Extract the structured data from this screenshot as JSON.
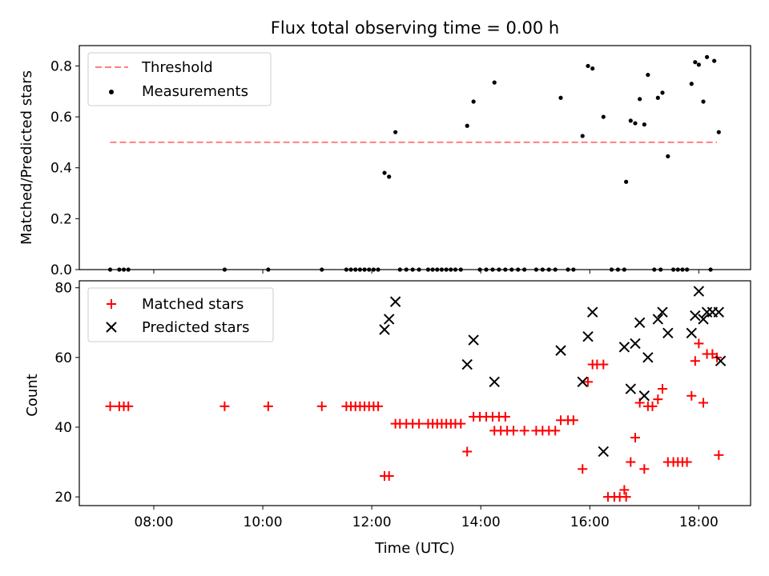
{
  "chart_data": [
    {
      "type": "scatter",
      "title": "Flux total observing time = 0.00 h",
      "xlabel": "",
      "ylabel": "Matched/Predicted stars",
      "xlim": [
        "06:38",
        "18:57"
      ],
      "ylim": [
        0,
        0.88
      ],
      "yticks": [
        "0.0",
        "0.2",
        "0.4",
        "0.6",
        "0.8"
      ],
      "legend_position": "top-left",
      "threshold": {
        "name": "Threshold",
        "value": 0.5,
        "x": [
          "07:12",
          "18:20"
        ],
        "color": "#ff7f7f",
        "style": "dashed"
      },
      "series": [
        {
          "name": "Measurements",
          "color": "#000000",
          "marker": "dot",
          "points": [
            [
              "07:12",
              0
            ],
            [
              "07:22",
              0
            ],
            [
              "07:27",
              0
            ],
            [
              "07:32",
              0
            ],
            [
              "09:18",
              0
            ],
            [
              "10:06",
              0
            ],
            [
              "11:05",
              0
            ],
            [
              "11:32",
              0
            ],
            [
              "11:37",
              0
            ],
            [
              "11:42",
              0
            ],
            [
              "11:47",
              0
            ],
            [
              "11:52",
              0
            ],
            [
              "11:57",
              0
            ],
            [
              "12:02",
              0
            ],
            [
              "12:07",
              0
            ],
            [
              "12:14",
              0.38
            ],
            [
              "12:19",
              0.365
            ],
            [
              "12:26",
              0.54
            ],
            [
              "12:31",
              0
            ],
            [
              "12:38",
              0
            ],
            [
              "12:45",
              0
            ],
            [
              "12:52",
              0
            ],
            [
              "13:02",
              0
            ],
            [
              "13:07",
              0
            ],
            [
              "13:12",
              0
            ],
            [
              "13:17",
              0
            ],
            [
              "13:22",
              0
            ],
            [
              "13:27",
              0
            ],
            [
              "13:32",
              0
            ],
            [
              "13:38",
              0
            ],
            [
              "13:45",
              0.565
            ],
            [
              "13:52",
              0.66
            ],
            [
              "13:59",
              0
            ],
            [
              "14:06",
              0
            ],
            [
              "14:13",
              0
            ],
            [
              "14:20",
              0
            ],
            [
              "14:27",
              0
            ],
            [
              "14:34",
              0
            ],
            [
              "14:41",
              0
            ],
            [
              "14:48",
              0
            ],
            [
              "14:15",
              0.735
            ],
            [
              "15:01",
              0
            ],
            [
              "15:08",
              0
            ],
            [
              "15:15",
              0
            ],
            [
              "15:22",
              0
            ],
            [
              "15:36",
              0
            ],
            [
              "15:42",
              0
            ],
            [
              "15:28",
              0.675
            ],
            [
              "15:52",
              0.525
            ],
            [
              "15:58",
              0.8
            ],
            [
              "16:03",
              0.79
            ],
            [
              "16:15",
              0.6
            ],
            [
              "16:24",
              0
            ],
            [
              "16:31",
              0
            ],
            [
              "16:38",
              0
            ],
            [
              "16:40",
              0.345
            ],
            [
              "16:45",
              0.585
            ],
            [
              "16:50",
              0.575
            ],
            [
              "16:55",
              0.67
            ],
            [
              "17:00",
              0.57
            ],
            [
              "17:04",
              0.765
            ],
            [
              "17:11",
              0
            ],
            [
              "17:18",
              0
            ],
            [
              "17:15",
              0.675
            ],
            [
              "17:20",
              0.695
            ],
            [
              "17:26",
              0.445
            ],
            [
              "17:32",
              0
            ],
            [
              "17:37",
              0
            ],
            [
              "17:42",
              0
            ],
            [
              "17:47",
              0
            ],
            [
              "17:52",
              0.73
            ],
            [
              "17:56",
              0.815
            ],
            [
              "18:00",
              0.805
            ],
            [
              "18:05",
              0.66
            ],
            [
              "18:09",
              0.835
            ],
            [
              "18:13",
              0
            ],
            [
              "18:17",
              0.82
            ],
            [
              "18:22",
              0.54
            ]
          ]
        }
      ]
    },
    {
      "type": "scatter",
      "title": "",
      "xlabel": "Time (UTC)",
      "ylabel": "Count",
      "xlim": [
        "06:38",
        "18:57"
      ],
      "ylim": [
        17.5,
        82
      ],
      "xticks": [
        "08:00",
        "10:00",
        "12:00",
        "14:00",
        "16:00",
        "18:00"
      ],
      "yticks": [
        "20",
        "40",
        "60",
        "80"
      ],
      "legend_position": "top-left",
      "series": [
        {
          "name": "Matched stars",
          "color": "#ff0000",
          "marker": "plus",
          "points": [
            [
              "07:12",
              46
            ],
            [
              "07:22",
              46
            ],
            [
              "07:27",
              46
            ],
            [
              "07:32",
              46
            ],
            [
              "09:18",
              46
            ],
            [
              "10:06",
              46
            ],
            [
              "11:05",
              46
            ],
            [
              "11:32",
              46
            ],
            [
              "11:37",
              46
            ],
            [
              "11:42",
              46
            ],
            [
              "11:47",
              46
            ],
            [
              "11:52",
              46
            ],
            [
              "11:57",
              46
            ],
            [
              "12:02",
              46
            ],
            [
              "12:07",
              46
            ],
            [
              "12:14",
              26
            ],
            [
              "12:19",
              26
            ],
            [
              "12:26",
              41
            ],
            [
              "12:31",
              41
            ],
            [
              "12:38",
              41
            ],
            [
              "12:45",
              41
            ],
            [
              "12:52",
              41
            ],
            [
              "13:02",
              41
            ],
            [
              "13:07",
              41
            ],
            [
              "13:12",
              41
            ],
            [
              "13:17",
              41
            ],
            [
              "13:22",
              41
            ],
            [
              "13:27",
              41
            ],
            [
              "13:32",
              41
            ],
            [
              "13:38",
              41
            ],
            [
              "13:45",
              33
            ],
            [
              "13:52",
              43
            ],
            [
              "13:59",
              43
            ],
            [
              "14:06",
              43
            ],
            [
              "14:13",
              43
            ],
            [
              "14:20",
              43
            ],
            [
              "14:27",
              43
            ],
            [
              "14:15",
              39
            ],
            [
              "14:22",
              39
            ],
            [
              "14:29",
              39
            ],
            [
              "14:36",
              39
            ],
            [
              "14:48",
              39
            ],
            [
              "15:01",
              39
            ],
            [
              "15:08",
              39
            ],
            [
              "15:15",
              39
            ],
            [
              "15:22",
              39
            ],
            [
              "15:28",
              42
            ],
            [
              "15:36",
              42
            ],
            [
              "15:42",
              42
            ],
            [
              "15:52",
              28
            ],
            [
              "15:58",
              53
            ],
            [
              "16:03",
              58
            ],
            [
              "16:08",
              58
            ],
            [
              "16:15",
              58
            ],
            [
              "16:20",
              20
            ],
            [
              "16:27",
              20
            ],
            [
              "16:33",
              20
            ],
            [
              "16:38",
              22
            ],
            [
              "16:40",
              20
            ],
            [
              "16:45",
              30
            ],
            [
              "16:50",
              37
            ],
            [
              "16:55",
              47
            ],
            [
              "17:00",
              28
            ],
            [
              "17:04",
              46
            ],
            [
              "17:09",
              46
            ],
            [
              "17:15",
              48
            ],
            [
              "17:20",
              51
            ],
            [
              "17:26",
              30
            ],
            [
              "17:32",
              30
            ],
            [
              "17:37",
              30
            ],
            [
              "17:42",
              30
            ],
            [
              "17:47",
              30
            ],
            [
              "17:52",
              49
            ],
            [
              "17:56",
              59
            ],
            [
              "18:00",
              64
            ],
            [
              "18:05",
              47
            ],
            [
              "18:09",
              61
            ],
            [
              "18:15",
              61
            ],
            [
              "18:20",
              60
            ],
            [
              "18:22",
              32
            ]
          ]
        },
        {
          "name": "Predicted stars",
          "color": "#000000",
          "marker": "x",
          "points": [
            [
              "12:14",
              68
            ],
            [
              "12:19",
              71
            ],
            [
              "12:26",
              76
            ],
            [
              "13:45",
              58
            ],
            [
              "13:52",
              65
            ],
            [
              "14:15",
              53
            ],
            [
              "15:28",
              62
            ],
            [
              "15:52",
              53
            ],
            [
              "15:58",
              66
            ],
            [
              "16:03",
              73
            ],
            [
              "16:15",
              33
            ],
            [
              "16:38",
              63
            ],
            [
              "16:45",
              51
            ],
            [
              "16:50",
              64
            ],
            [
              "16:55",
              70
            ],
            [
              "17:00",
              49
            ],
            [
              "17:04",
              60
            ],
            [
              "17:15",
              71
            ],
            [
              "17:20",
              73
            ],
            [
              "17:26",
              67
            ],
            [
              "17:52",
              67
            ],
            [
              "17:56",
              72
            ],
            [
              "18:00",
              79
            ],
            [
              "18:05",
              71
            ],
            [
              "18:09",
              73
            ],
            [
              "18:15",
              73
            ],
            [
              "18:22",
              73
            ],
            [
              "18:24",
              59
            ]
          ]
        }
      ]
    }
  ]
}
